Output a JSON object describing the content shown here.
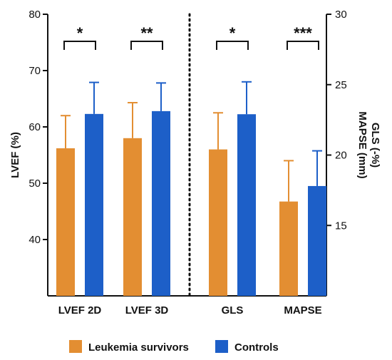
{
  "chart_data": {
    "type": "bar",
    "categories": [
      "LVEF 2D",
      "LVEF 3D",
      "GLS",
      "MAPSE"
    ],
    "axes": {
      "left": {
        "label": "LVEF (%)",
        "range": [
          30,
          80
        ],
        "ticks": [
          40,
          50,
          60,
          70,
          80
        ],
        "applies_to": [
          "LVEF 2D",
          "LVEF 3D"
        ]
      },
      "right": {
        "label_lines": [
          "GLS (-%)",
          "MAPSE (mm)"
        ],
        "range": [
          10,
          30
        ],
        "ticks": [
          15,
          20,
          25,
          30
        ],
        "applies_to": [
          "GLS",
          "MAPSE"
        ]
      }
    },
    "series": [
      {
        "name": "Leukemia survivors",
        "color": "#E38E32",
        "values": [
          56.2,
          58.0,
          20.4,
          16.7
        ],
        "errors": [
          5.8,
          6.3,
          2.6,
          2.9
        ]
      },
      {
        "name": "Controls",
        "color": "#1D5FC8",
        "values": [
          62.3,
          62.8,
          22.9,
          17.8
        ],
        "errors": [
          5.6,
          5.0,
          2.3,
          2.5
        ]
      }
    ],
    "significance": [
      "*",
      "**",
      "*",
      "***"
    ],
    "divider_after": "LVEF 3D",
    "legend": {
      "position": "bottom"
    }
  }
}
